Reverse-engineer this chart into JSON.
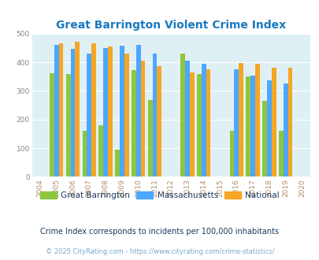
{
  "title": "Great Barrington Violent Crime Index",
  "years": [
    2005,
    2006,
    2007,
    2008,
    2009,
    2010,
    2011,
    2013,
    2014,
    2016,
    2017,
    2018,
    2019
  ],
  "great_barrington": [
    362,
    360,
    162,
    180,
    95,
    373,
    267,
    432,
    360,
    162,
    350,
    265,
    162
  ],
  "massachusetts": [
    460,
    448,
    430,
    450,
    458,
    460,
    430,
    407,
    394,
    375,
    355,
    337,
    327
  ],
  "national": [
    468,
    472,
    467,
    455,
    432,
    405,
    387,
    366,
    376,
    398,
    394,
    380,
    381
  ],
  "color_gb": "#8dc63f",
  "color_ma": "#4da6ff",
  "color_nat": "#f5a623",
  "bg_color": "#dff0f5",
  "xlim": [
    2003.5,
    2020.5
  ],
  "ylim": [
    0,
    500
  ],
  "yticks": [
    0,
    100,
    200,
    300,
    400,
    500
  ],
  "xticks": [
    2004,
    2005,
    2006,
    2007,
    2008,
    2009,
    2010,
    2011,
    2012,
    2013,
    2014,
    2015,
    2016,
    2017,
    2018,
    2019,
    2020
  ],
  "bar_width": 0.28,
  "legend_labels": [
    "Great Barrington",
    "Massachusetts",
    "National"
  ],
  "footnote1": "Crime Index corresponds to incidents per 100,000 inhabitants",
  "footnote2": "© 2025 CityRating.com - https://www.cityrating.com/crime-statistics/",
  "title_color": "#1a7abf",
  "footnote1_color": "#1a3a5c",
  "footnote2_color": "#7aabcf",
  "tick_color": "#b0906a",
  "ytick_color": "#888888"
}
